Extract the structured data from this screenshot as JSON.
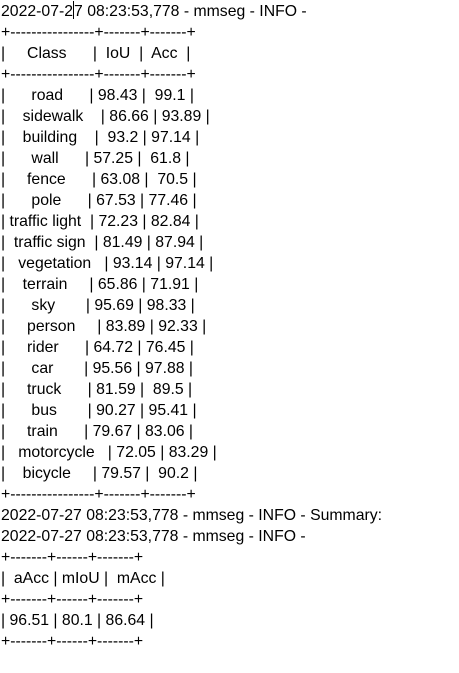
{
  "log": {
    "header_part1": "2022-07-2",
    "header_part2": "7 08:23:53,778 - mmseg - INFO -",
    "lines": [
      "+----------------+-------+-------+",
      "|     Class      |  IoU  |  Acc  |",
      "+----------------+-------+-------+",
      "|      road      | 98.43 |  99.1 |",
      "|    sidewalk    | 86.66 | 93.89 |",
      "|    building    |  93.2 | 97.14 |",
      "|      wall      | 57.25 |  61.8 |",
      "|     fence      | 63.08 |  70.5 |",
      "|      pole      | 67.53 | 77.46 |",
      "| traffic light  | 72.23 | 82.84 |",
      "|  traffic sign  | 81.49 | 87.94 |",
      "|   vegetation   | 93.14 | 97.14 |",
      "|    terrain     | 65.86 | 71.91 |",
      "|      sky       | 95.69 | 98.33 |",
      "|     person     | 83.89 | 92.33 |",
      "|     rider      | 64.72 | 76.45 |",
      "|      car       | 95.56 | 97.88 |",
      "|     truck      | 81.59 |  89.5 |",
      "|      bus       | 90.27 | 95.41 |",
      "|     train      | 79.67 | 83.06 |",
      "|   motorcycle   | 72.05 | 83.29 |",
      "|    bicycle     | 79.57 |  90.2 |",
      "+----------------+-------+-------+",
      "2022-07-27 08:23:53,778 - mmseg - INFO - Summary:",
      "2022-07-27 08:23:53,778 - mmseg - INFO -",
      "+-------+------+-------+",
      "|  aAcc | mIoU |  mAcc |",
      "+-------+------+-------+",
      "| 96.51 | 80.1 | 86.64 |",
      "+-------+------+-------+"
    ]
  }
}
